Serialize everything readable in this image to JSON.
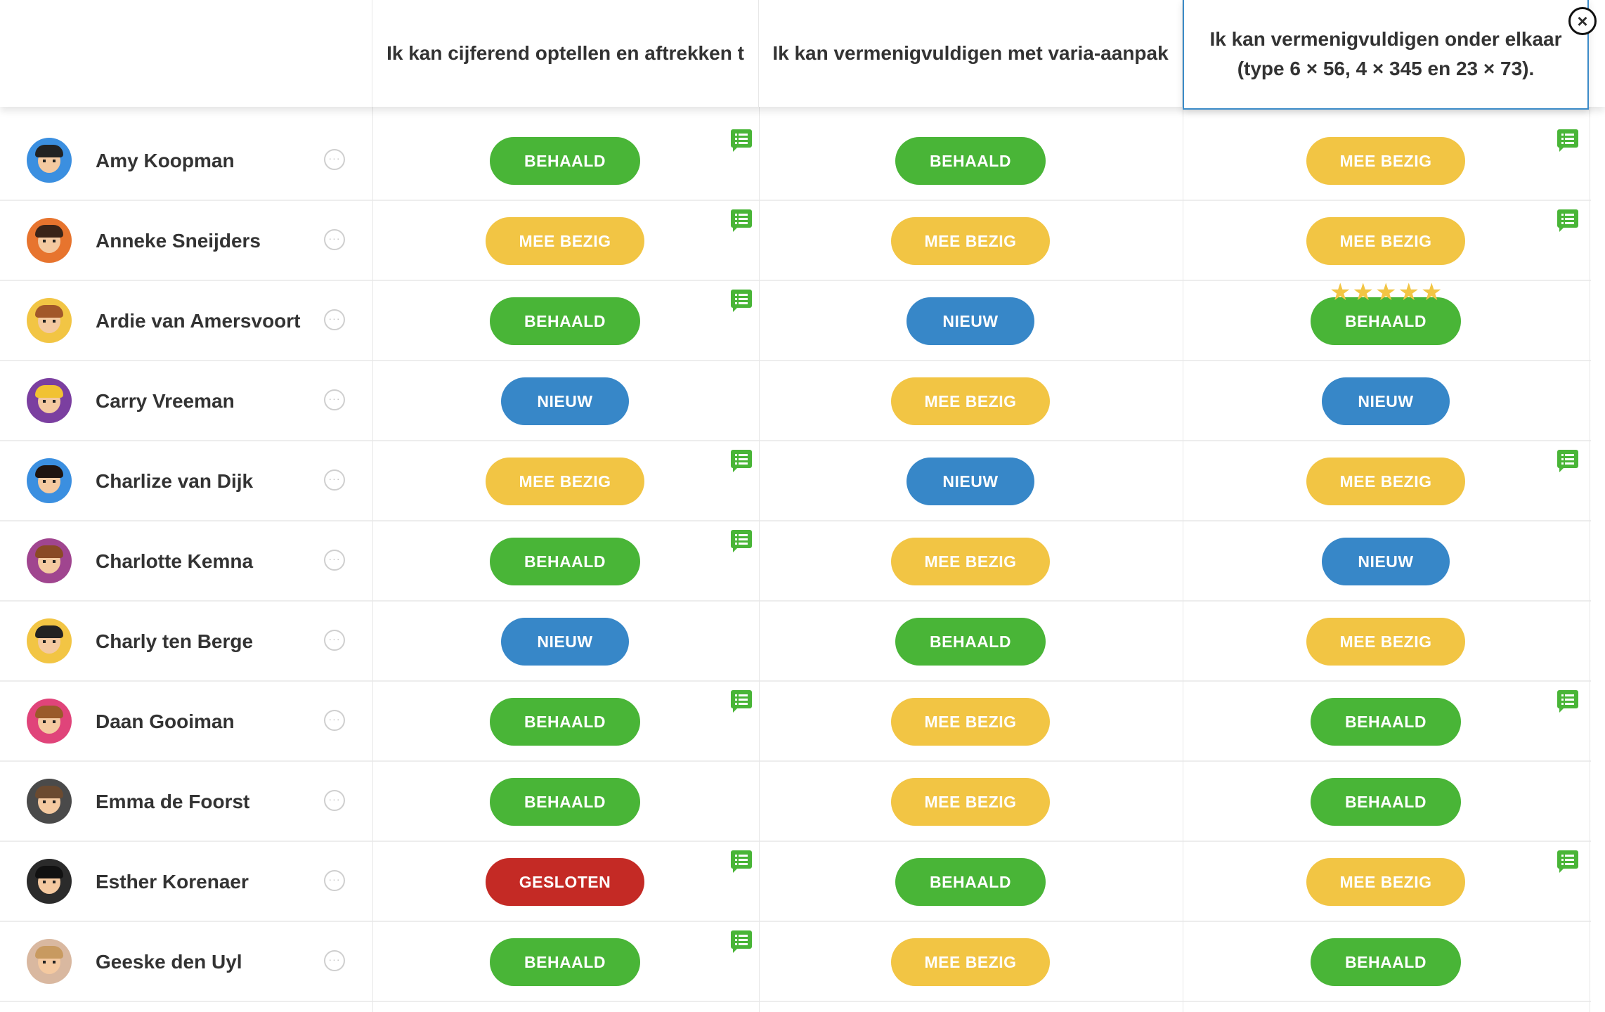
{
  "headers": {
    "col1": "Ik kan cijferend optellen en aftrekken t",
    "col2": "Ik kan vermenigvuldigen met varia-aanpak",
    "popover_line1": "Ik kan vermenigvuldigen onder elkaar",
    "popover_line2": "(type 6 × 56, 4 × 345 en 23 × 73)."
  },
  "close_glyph": "×",
  "more_glyph": "···",
  "star_glyph": "★",
  "status_colors": {
    "BEHAALD": "#49b537",
    "MEE BEZIG": "#f2c544",
    "NIEUW": "#3787c8",
    "GESLOTEN": "#c42a25"
  },
  "students": [
    {
      "name": "Amy Koopman",
      "avatar_bg": "#3b8fe0",
      "hair": "#222222",
      "statuses": [
        "BEHAALD",
        "BEHAALD",
        "MEE BEZIG"
      ],
      "comments": [
        true,
        false,
        true
      ],
      "stars": [
        0,
        0,
        0
      ]
    },
    {
      "name": "Anneke Sneijders",
      "avatar_bg": "#e7742e",
      "hair": "#3a2418",
      "statuses": [
        "MEE BEZIG",
        "MEE BEZIG",
        "MEE BEZIG"
      ],
      "comments": [
        true,
        false,
        true
      ],
      "stars": [
        0,
        0,
        0
      ]
    },
    {
      "name": "Ardie van Amersvoort",
      "avatar_bg": "#f2c544",
      "hair": "#a2572a",
      "statuses": [
        "BEHAALD",
        "NIEUW",
        "BEHAALD"
      ],
      "comments": [
        true,
        false,
        false
      ],
      "stars": [
        0,
        0,
        5
      ]
    },
    {
      "name": "Carry Vreeman",
      "avatar_bg": "#7b3fa0",
      "hair": "#f1c232",
      "statuses": [
        "NIEUW",
        "MEE BEZIG",
        "NIEUW"
      ],
      "comments": [
        false,
        false,
        false
      ],
      "stars": [
        0,
        0,
        0
      ]
    },
    {
      "name": "Charlize van Dijk",
      "avatar_bg": "#3b8fe0",
      "hair": "#1f1410",
      "statuses": [
        "MEE BEZIG",
        "NIEUW",
        "MEE BEZIG"
      ],
      "comments": [
        true,
        false,
        true
      ],
      "stars": [
        0,
        0,
        0
      ]
    },
    {
      "name": "Charlotte Kemna",
      "avatar_bg": "#a0458f",
      "hair": "#8a4a25",
      "statuses": [
        "BEHAALD",
        "MEE BEZIG",
        "NIEUW"
      ],
      "comments": [
        true,
        false,
        false
      ],
      "stars": [
        0,
        0,
        0
      ]
    },
    {
      "name": "Charly ten Berge",
      "avatar_bg": "#f2c544",
      "hair": "#222222",
      "statuses": [
        "NIEUW",
        "BEHAALD",
        "MEE BEZIG"
      ],
      "comments": [
        false,
        false,
        false
      ],
      "stars": [
        0,
        0,
        0
      ]
    },
    {
      "name": "Daan Gooiman",
      "avatar_bg": "#e0447a",
      "hair": "#9a5a2a",
      "statuses": [
        "BEHAALD",
        "MEE BEZIG",
        "BEHAALD"
      ],
      "comments": [
        true,
        false,
        true
      ],
      "stars": [
        0,
        0,
        0
      ]
    },
    {
      "name": "Emma de Foorst",
      "avatar_bg": "#4a4a4a",
      "hair": "#6b4a30",
      "statuses": [
        "BEHAALD",
        "MEE BEZIG",
        "BEHAALD"
      ],
      "comments": [
        false,
        false,
        false
      ],
      "stars": [
        0,
        0,
        0
      ]
    },
    {
      "name": "Esther Korenaer",
      "avatar_bg": "#2b2b2b",
      "hair": "#111111",
      "statuses": [
        "GESLOTEN",
        "BEHAALD",
        "MEE BEZIG"
      ],
      "comments": [
        true,
        false,
        true
      ],
      "stars": [
        0,
        0,
        0
      ]
    },
    {
      "name": "Geeske den Uyl",
      "avatar_bg": "#d9b8a0",
      "hair": "#c89a60",
      "statuses": [
        "BEHAALD",
        "MEE BEZIG",
        "BEHAALD"
      ],
      "comments": [
        true,
        false,
        false
      ],
      "stars": [
        0,
        0,
        0
      ]
    }
  ]
}
